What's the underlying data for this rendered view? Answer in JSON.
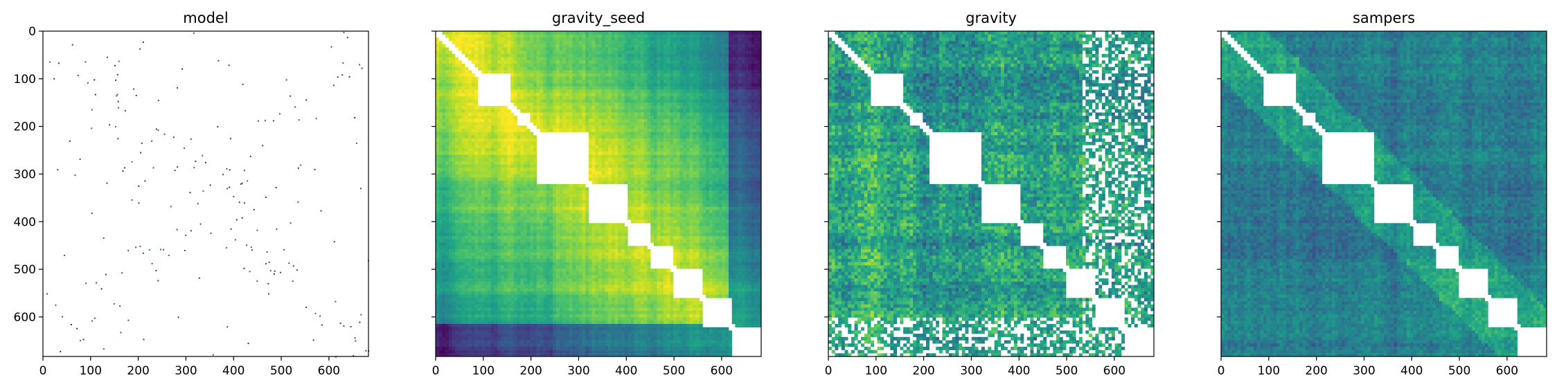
{
  "figure": {
    "panels": [
      {
        "id": "model",
        "title": "model",
        "style": "sparse",
        "cmap": "viridis",
        "show_yticklabels": true
      },
      {
        "id": "gravity_seed",
        "title": "gravity_seed",
        "style": "smooth",
        "cmap": "viridis",
        "show_yticklabels": false
      },
      {
        "id": "gravity",
        "title": "gravity",
        "style": "noisy",
        "cmap": "viridis",
        "show_yticklabels": false
      },
      {
        "id": "sampers",
        "title": "sampers",
        "style": "dark",
        "cmap": "viridis",
        "show_yticklabels": false
      }
    ]
  },
  "chart_data": [
    {
      "type": "heatmap",
      "title": "model",
      "xlim": [
        0,
        683
      ],
      "ylim": [
        683,
        0
      ],
      "xticks": [
        "0",
        "100",
        "200",
        "300",
        "400",
        "500",
        "600"
      ],
      "yticks": [
        "0",
        "100",
        "200",
        "300",
        "400",
        "500",
        "600"
      ],
      "grid": false,
      "colormap": "viridis",
      "blank_value_color": "#ffffff",
      "note_values": "sparse matrix: mostly empty with scattered purple points near diagonal blocks"
    },
    {
      "type": "heatmap",
      "title": "gravity_seed",
      "xlim": [
        0,
        683
      ],
      "ylim": [
        683,
        0
      ],
      "xticks": [
        "0",
        "100",
        "200",
        "300",
        "400",
        "500",
        "600"
      ],
      "yticks": [
        "0",
        "100",
        "200",
        "300",
        "400",
        "500",
        "600"
      ],
      "grid": false,
      "colormap": "viridis",
      "diagonal_blocks": [
        [
          90,
          160
        ],
        [
          170,
          200
        ],
        [
          215,
          320
        ],
        [
          320,
          400
        ],
        [
          400,
          450
        ],
        [
          450,
          500
        ],
        [
          500,
          560
        ],
        [
          560,
          620
        ],
        [
          620,
          683
        ]
      ]
    },
    {
      "type": "heatmap",
      "title": "gravity",
      "xlim": [
        0,
        683
      ],
      "ylim": [
        683,
        0
      ],
      "xticks": [
        "0",
        "100",
        "200",
        "300",
        "400",
        "500",
        "600"
      ],
      "yticks": [
        "0",
        "100",
        "200",
        "300",
        "400",
        "500",
        "600"
      ],
      "grid": false,
      "colormap": "viridis",
      "diagonal_blocks": [
        [
          90,
          160
        ],
        [
          170,
          200
        ],
        [
          215,
          320
        ],
        [
          320,
          400
        ],
        [
          400,
          450
        ],
        [
          450,
          500
        ],
        [
          500,
          560
        ],
        [
          560,
          620
        ],
        [
          620,
          683
        ]
      ]
    },
    {
      "type": "heatmap",
      "title": "sampers",
      "xlim": [
        0,
        683
      ],
      "ylim": [
        683,
        0
      ],
      "xticks": [
        "0",
        "100",
        "200",
        "300",
        "400",
        "500",
        "600"
      ],
      "yticks": [
        "0",
        "100",
        "200",
        "300",
        "400",
        "500",
        "600"
      ],
      "grid": false,
      "colormap": "viridis",
      "diagonal_blocks": [
        [
          90,
          160
        ],
        [
          170,
          200
        ],
        [
          215,
          320
        ],
        [
          320,
          400
        ],
        [
          400,
          450
        ],
        [
          450,
          500
        ],
        [
          500,
          560
        ],
        [
          560,
          620
        ],
        [
          620,
          683
        ]
      ]
    }
  ]
}
